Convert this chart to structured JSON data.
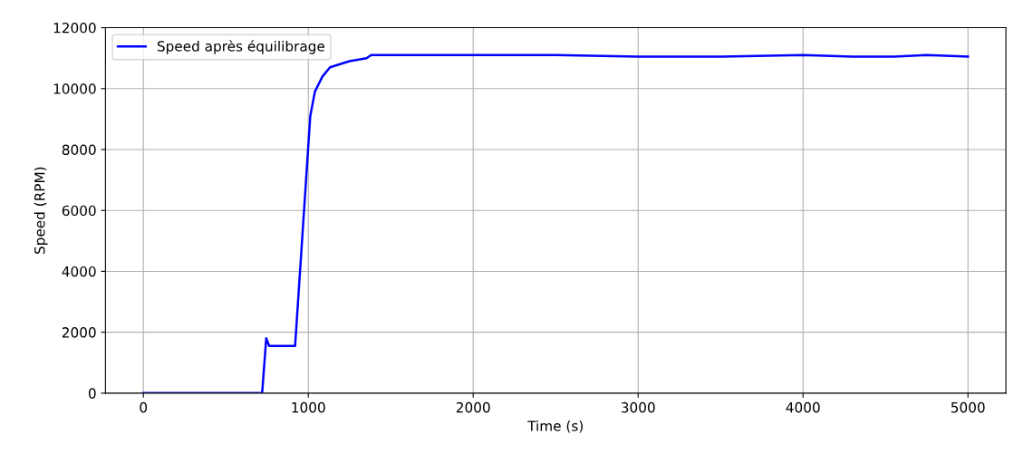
{
  "chart_data": {
    "type": "line",
    "xlabel": "Time (s)",
    "ylabel": "Speed (RPM)",
    "xlim": [
      -230,
      5230
    ],
    "ylim": [
      0,
      12000
    ],
    "xticks": [
      0,
      1000,
      2000,
      3000,
      4000,
      5000
    ],
    "yticks": [
      0,
      2000,
      4000,
      6000,
      8000,
      10000,
      12000
    ],
    "grid": true,
    "legend": "top left",
    "series": [
      {
        "name": "Speed après équilibrage",
        "color": "#0000ff",
        "x": [
          0,
          720,
          745,
          763,
          920,
          1012,
          1040,
          1086,
          1132,
          1250,
          1353,
          1381,
          1600,
          2000,
          2500,
          3000,
          3500,
          4000,
          4300,
          4550,
          4750,
          5000
        ],
        "values": [
          0,
          0,
          1800,
          1550,
          1550,
          9100,
          9900,
          10400,
          10700,
          10900,
          11000,
          11100,
          11100,
          11100,
          11100,
          11050,
          11050,
          11100,
          11050,
          11050,
          11100,
          11050
        ]
      }
    ]
  }
}
